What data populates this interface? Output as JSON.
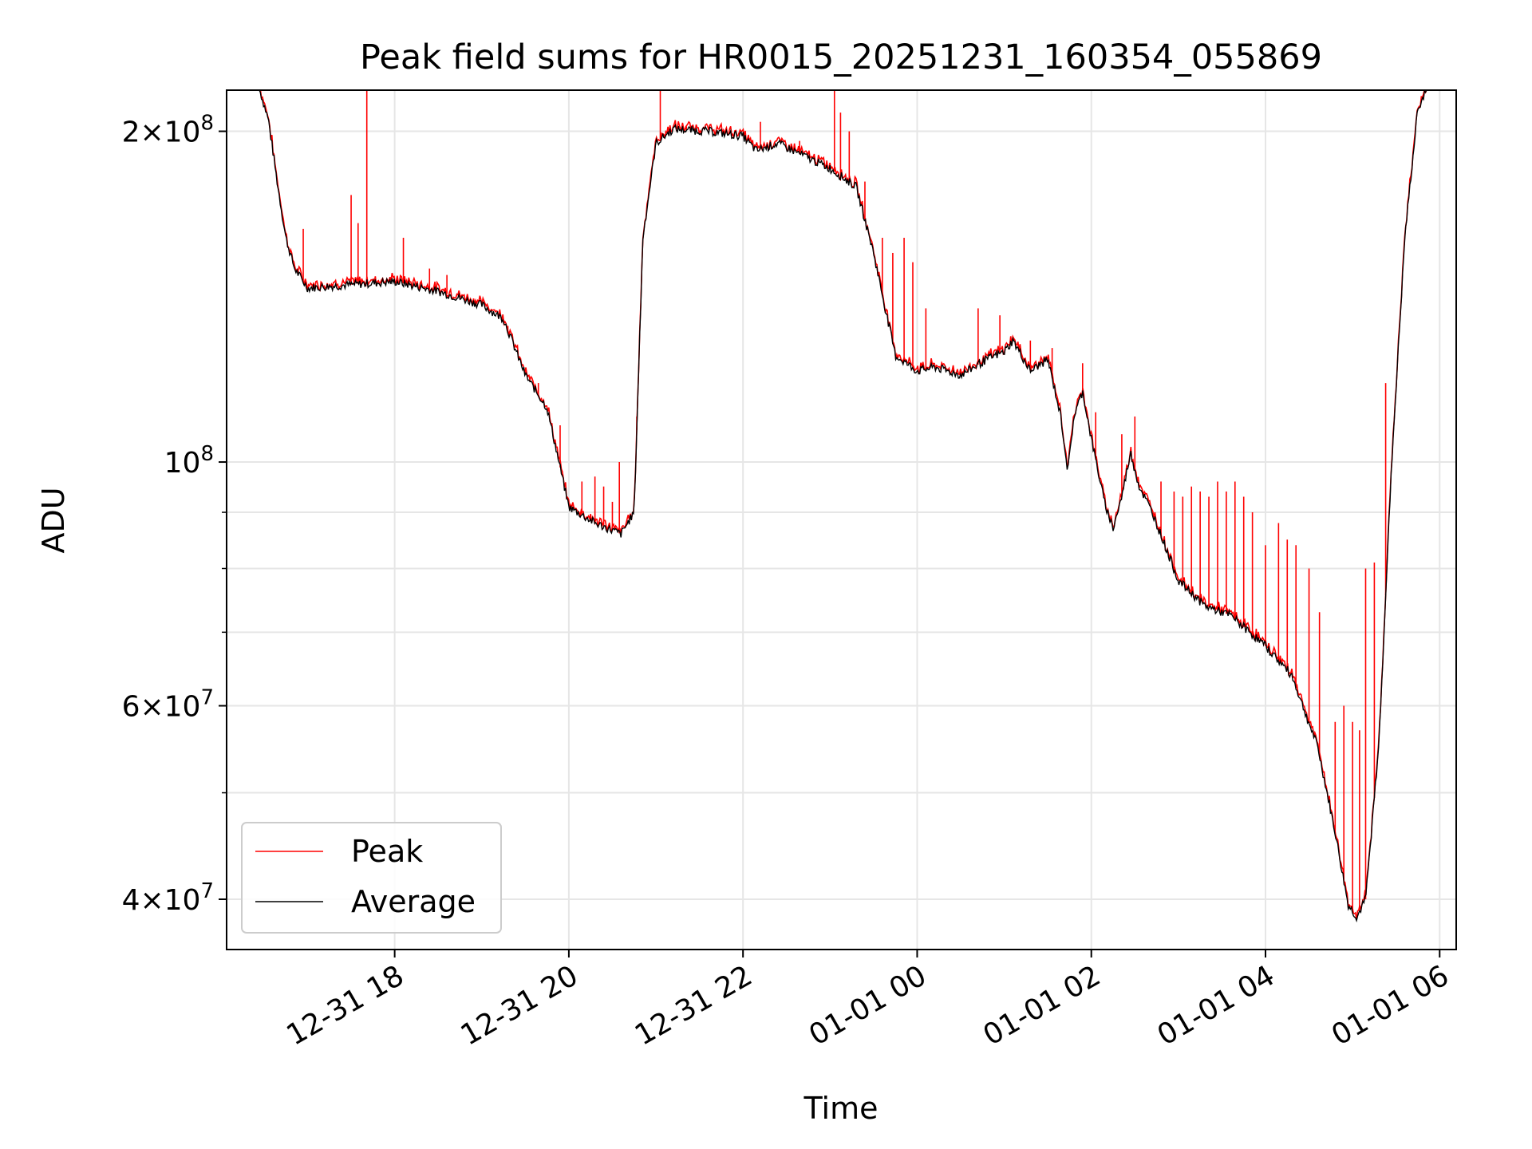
{
  "chart_data": {
    "type": "line",
    "title": "Peak field sums for HR0015_20251231_160354_055869",
    "xlabel": "Time",
    "ylabel": "ADU",
    "yscale": "log",
    "ylim": [
      36000000,
      218000000
    ],
    "xlim": [
      16.07,
      30.19
    ],
    "x_unit": "hours since 12-31 00:00",
    "grid": true,
    "legend_position": "lower-left",
    "x_ticks": [
      {
        "value": 18,
        "label": "12-31 18"
      },
      {
        "value": 20,
        "label": "12-31 20"
      },
      {
        "value": 22,
        "label": "12-31 22"
      },
      {
        "value": 24,
        "label": "01-01 00"
      },
      {
        "value": 26,
        "label": "01-01 02"
      },
      {
        "value": 28,
        "label": "01-01 04"
      },
      {
        "value": 30,
        "label": "01-01 06"
      }
    ],
    "y_major_ticks": [
      {
        "value": 40000000,
        "mantissa": "4",
        "base": "10",
        "exp": "7"
      },
      {
        "value": 60000000,
        "mantissa": "6",
        "base": "10",
        "exp": "7"
      },
      {
        "value": 100000000,
        "mantissa": "",
        "base": "10",
        "exp": "8"
      },
      {
        "value": 200000000,
        "mantissa": "2",
        "base": "10",
        "exp": "8"
      }
    ],
    "y_minor_ticks": [
      50000000,
      70000000,
      80000000,
      90000000
    ],
    "series": [
      {
        "name": "Average",
        "color": "#000000",
        "points": [
          [
            16.35,
            218000000
          ],
          [
            16.45,
            218000000
          ],
          [
            16.55,
            205000000
          ],
          [
            16.65,
            180000000
          ],
          [
            16.75,
            160000000
          ],
          [
            16.85,
            150000000
          ],
          [
            17.0,
            144000000
          ],
          [
            17.5,
            145000000
          ],
          [
            18.0,
            146000000
          ],
          [
            18.5,
            143000000
          ],
          [
            19.0,
            139000000
          ],
          [
            19.25,
            135000000
          ],
          [
            19.5,
            120000000
          ],
          [
            19.75,
            112000000
          ],
          [
            20.0,
            91000000
          ],
          [
            20.3,
            88000000
          ],
          [
            20.6,
            86000000
          ],
          [
            20.75,
            90000000
          ],
          [
            20.85,
            160000000
          ],
          [
            21.0,
            195000000
          ],
          [
            21.2,
            201000000
          ],
          [
            21.6,
            200000000
          ],
          [
            22.0,
            198000000
          ],
          [
            22.15,
            192000000
          ],
          [
            22.4,
            195000000
          ],
          [
            22.7,
            190000000
          ],
          [
            23.0,
            185000000
          ],
          [
            23.3,
            178000000
          ],
          [
            23.5,
            155000000
          ],
          [
            23.6,
            142000000
          ],
          [
            23.75,
            125000000
          ],
          [
            24.0,
            121000000
          ],
          [
            24.2,
            122000000
          ],
          [
            24.5,
            120000000
          ],
          [
            24.8,
            124000000
          ],
          [
            25.0,
            126000000
          ],
          [
            25.1,
            129000000
          ],
          [
            25.3,
            121000000
          ],
          [
            25.5,
            124000000
          ],
          [
            25.65,
            110000000
          ],
          [
            25.73,
            98000000
          ],
          [
            25.8,
            110000000
          ],
          [
            25.9,
            116000000
          ],
          [
            26.0,
            105000000
          ],
          [
            26.15,
            92000000
          ],
          [
            26.25,
            87000000
          ],
          [
            26.35,
            93000000
          ],
          [
            26.45,
            102000000
          ],
          [
            26.55,
            95000000
          ],
          [
            26.7,
            90000000
          ],
          [
            27.0,
            78000000
          ],
          [
            27.3,
            74000000
          ],
          [
            27.6,
            72500000
          ],
          [
            28.0,
            68000000
          ],
          [
            28.3,
            64000000
          ],
          [
            28.6,
            55000000
          ],
          [
            28.8,
            46000000
          ],
          [
            28.95,
            39500000
          ],
          [
            29.05,
            38500000
          ],
          [
            29.15,
            40000000
          ],
          [
            29.3,
            55000000
          ],
          [
            29.45,
            100000000
          ],
          [
            29.6,
            160000000
          ],
          [
            29.75,
            210000000
          ],
          [
            29.85,
            218000000
          ],
          [
            30.2,
            218000000
          ]
        ]
      },
      {
        "name": "Peak",
        "color": "#ff0000",
        "spikes": [
          [
            16.95,
            163000000
          ],
          [
            17.5,
            175000000
          ],
          [
            17.58,
            165000000
          ],
          [
            17.68,
            218000000
          ],
          [
            18.1,
            160000000
          ],
          [
            18.4,
            150000000
          ],
          [
            18.6,
            148000000
          ],
          [
            19.3,
            133000000
          ],
          [
            19.65,
            118000000
          ],
          [
            19.9,
            108000000
          ],
          [
            20.15,
            96000000
          ],
          [
            20.3,
            97000000
          ],
          [
            20.4,
            95000000
          ],
          [
            20.5,
            92000000
          ],
          [
            20.58,
            100000000
          ],
          [
            20.78,
            110000000
          ],
          [
            21.05,
            218000000
          ],
          [
            21.35,
            202000000
          ],
          [
            22.2,
            204000000
          ],
          [
            22.65,
            196000000
          ],
          [
            23.05,
            218000000
          ],
          [
            23.12,
            208000000
          ],
          [
            23.22,
            200000000
          ],
          [
            23.4,
            180000000
          ],
          [
            23.6,
            160000000
          ],
          [
            23.72,
            155000000
          ],
          [
            23.85,
            160000000
          ],
          [
            23.95,
            152000000
          ],
          [
            24.1,
            138000000
          ],
          [
            24.7,
            138000000
          ],
          [
            24.95,
            136000000
          ],
          [
            25.3,
            129000000
          ],
          [
            25.55,
            127000000
          ],
          [
            25.9,
            123000000
          ],
          [
            26.05,
            111000000
          ],
          [
            26.35,
            106000000
          ],
          [
            26.5,
            110000000
          ],
          [
            26.8,
            96000000
          ],
          [
            26.95,
            94000000
          ],
          [
            27.05,
            93000000
          ],
          [
            27.15,
            95000000
          ],
          [
            27.25,
            94000000
          ],
          [
            27.35,
            93000000
          ],
          [
            27.45,
            96000000
          ],
          [
            27.55,
            94000000
          ],
          [
            27.65,
            96000000
          ],
          [
            27.75,
            93000000
          ],
          [
            27.85,
            90000000
          ],
          [
            28.0,
            84000000
          ],
          [
            28.15,
            88000000
          ],
          [
            28.25,
            85000000
          ],
          [
            28.35,
            84000000
          ],
          [
            28.5,
            80000000
          ],
          [
            28.62,
            73000000
          ],
          [
            28.8,
            58000000
          ],
          [
            28.9,
            60000000
          ],
          [
            29.0,
            58000000
          ],
          [
            29.08,
            57000000
          ],
          [
            29.15,
            80000000
          ],
          [
            29.25,
            81000000
          ],
          [
            29.38,
            118000000
          ]
        ]
      }
    ]
  }
}
